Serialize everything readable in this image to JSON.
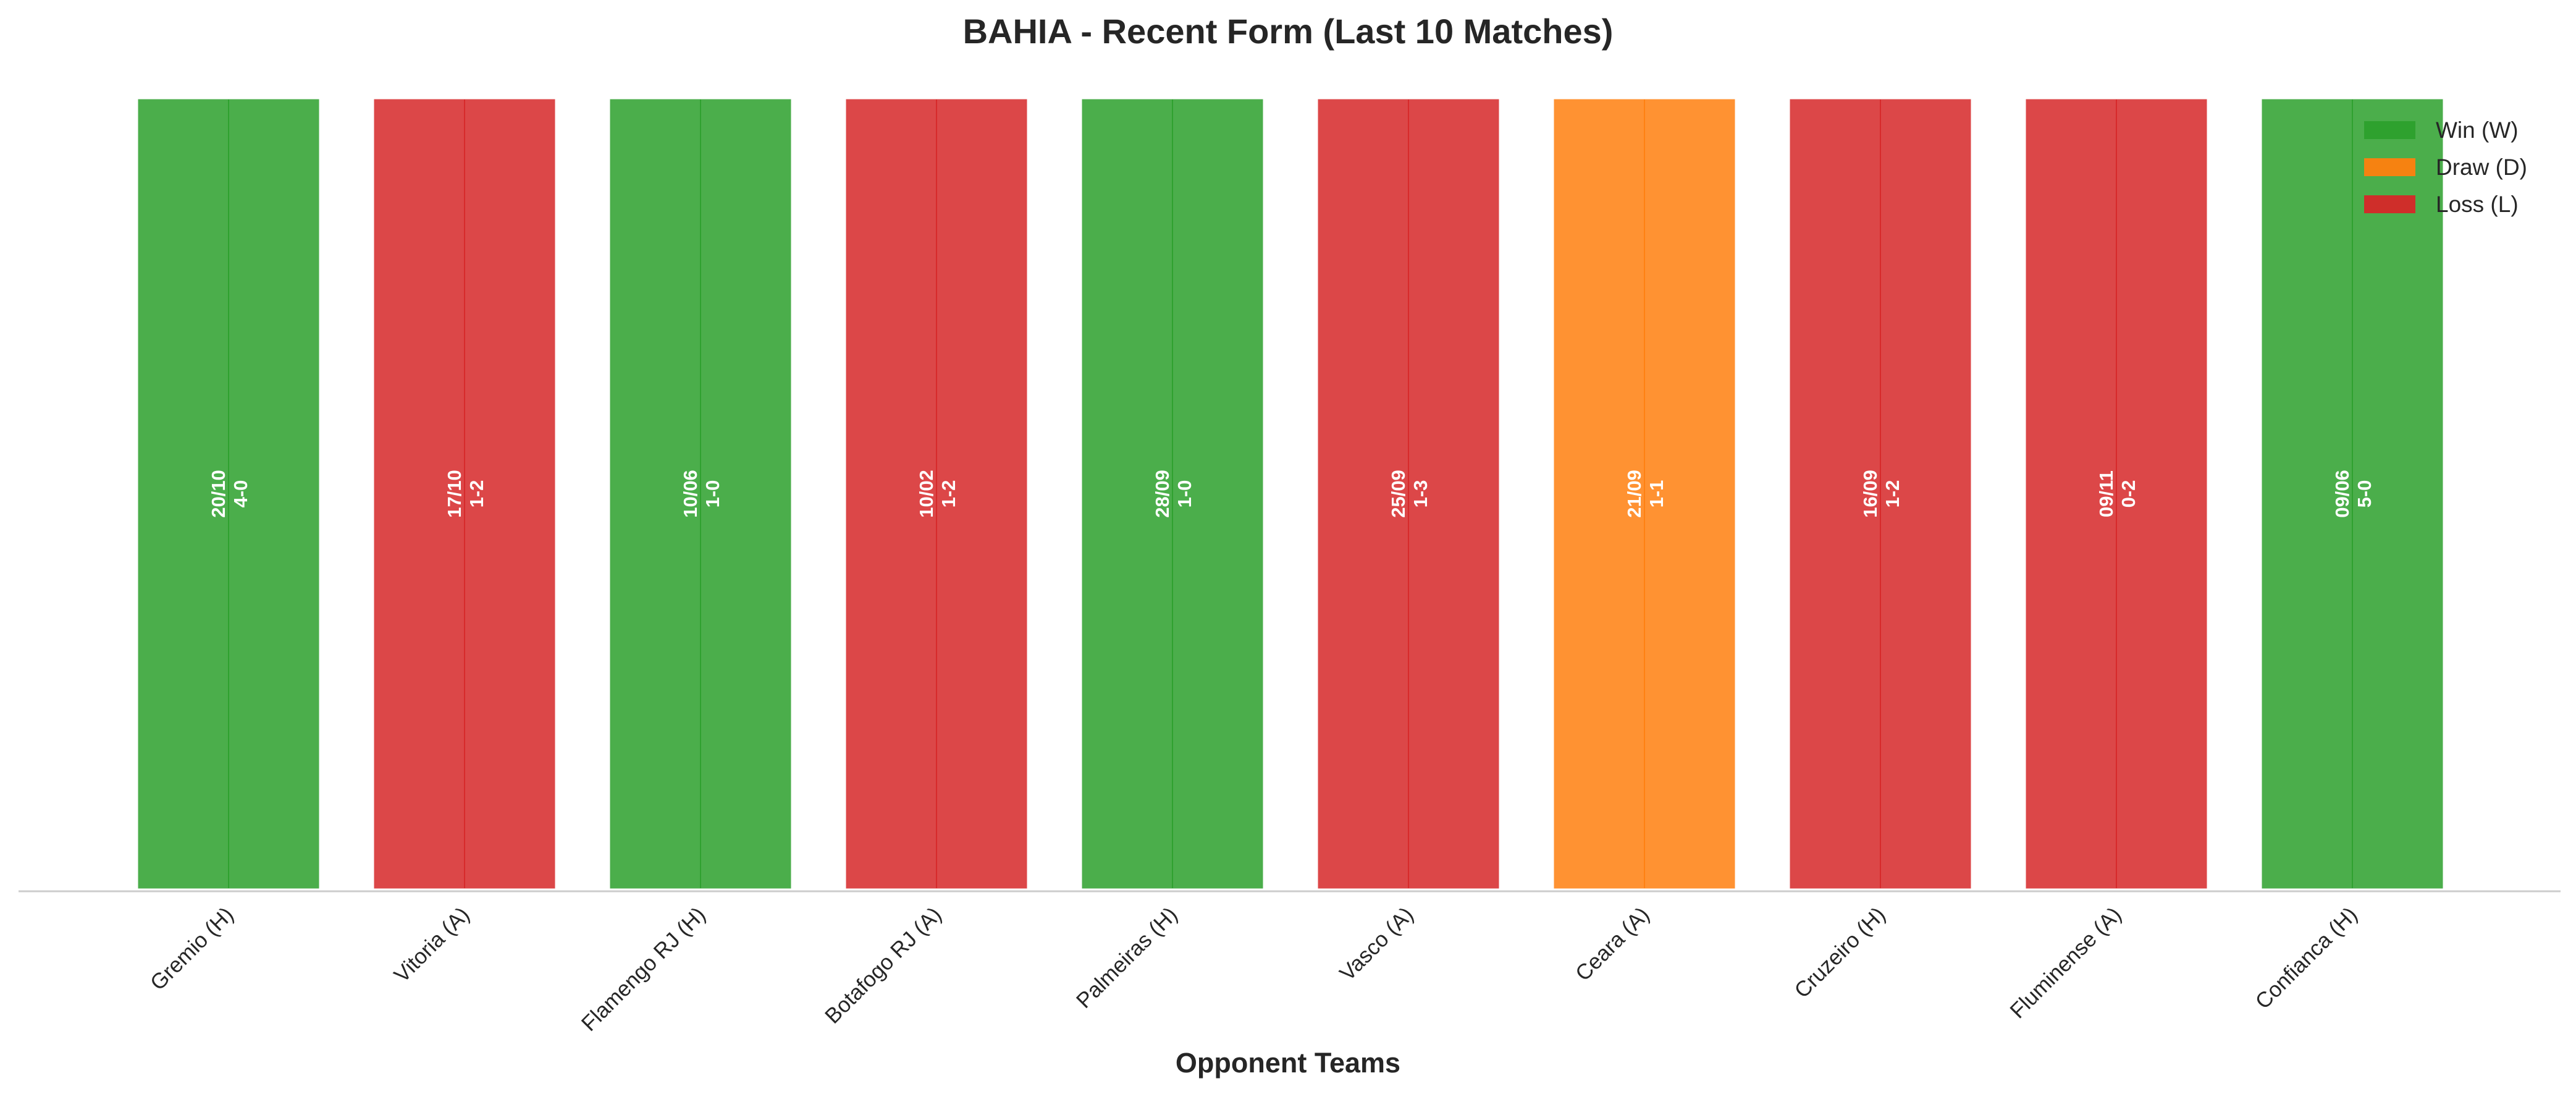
{
  "chart_data": {
    "type": "bar",
    "title": "BAHIA - Recent Form (Last 10 Matches)",
    "xlabel": "Opponent Teams",
    "ylabel": "",
    "ylim": [
      0,
      1
    ],
    "grid": false,
    "legend_position": "top-right",
    "colors": {
      "W": "#2ca02c",
      "D": "#ff7f0e",
      "L": "#d62728"
    },
    "legend": [
      {
        "key": "W",
        "label": "Win (W)"
      },
      {
        "key": "D",
        "label": "Draw (D)"
      },
      {
        "key": "L",
        "label": "Loss (L)"
      }
    ],
    "categories": [
      "Gremio (H)",
      "Vitoria (A)",
      "Flamengo RJ (H)",
      "Botafogo RJ (A)",
      "Palmeiras (H)",
      "Vasco (A)",
      "Ceara (A)",
      "Cruzeiro (H)",
      "Fluminense (A)",
      "Confianca (H)"
    ],
    "values": [
      1,
      1,
      1,
      1,
      1,
      1,
      1,
      1,
      1,
      1
    ],
    "results": [
      "W",
      "L",
      "W",
      "L",
      "W",
      "L",
      "D",
      "L",
      "L",
      "W"
    ],
    "dates": [
      "20/10",
      "17/10",
      "10/06",
      "10/02",
      "28/09",
      "25/09",
      "21/09",
      "16/09",
      "09/11",
      "09/06"
    ],
    "scores": [
      "4-0",
      "1-2",
      "1-0",
      "1-2",
      "1-0",
      "1-3",
      "1-1",
      "1-2",
      "0-2",
      "5-0"
    ]
  }
}
